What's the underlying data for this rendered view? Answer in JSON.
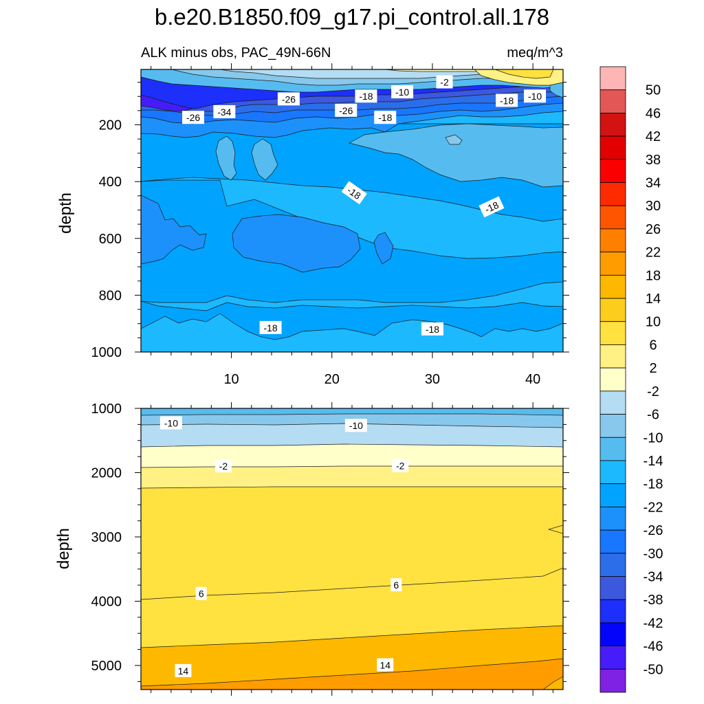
{
  "title": "b.e20.B1850.f09_g17.pi_control.all.178",
  "chart_data": {
    "type": "contour",
    "subtitle_left": "ALK minus obs, PAC_49N-66N",
    "subtitle_right": "meq/m^3",
    "x_ticks": [
      10,
      20,
      30,
      40
    ],
    "x_tick_labels": [
      "10",
      "20",
      "30",
      "40"
    ],
    "xlim": [
      1,
      43
    ],
    "colorbar": {
      "labels": [
        "50",
        "46",
        "42",
        "38",
        "34",
        "30",
        "26",
        "22",
        "18",
        "14",
        "10",
        "6",
        "2",
        "-2",
        "-6",
        "-10",
        "-14",
        "-18",
        "-22",
        "-26",
        "-30",
        "-34",
        "-38",
        "-42",
        "-46",
        "-50"
      ],
      "colors": [
        "#fdb5b5",
        "#e35757",
        "#d31212",
        "#e30000",
        "#fa0000",
        "#ff2b00",
        "#ff5500",
        "#ff8000",
        "#ff9d00",
        "#ffb800",
        "#fdcd1d",
        "#ffe140",
        "#fff184",
        "#ffffca",
        "#b4dcf3",
        "#88c8ec",
        "#56bcf0",
        "#1cb9ff",
        "#00a4ff",
        "#1d91fb",
        "#1976ff",
        "#2c6eea",
        "#3c58df",
        "#1d2ffa",
        "#0404fb",
        "#461cfa",
        "#7f22e3"
      ]
    },
    "panels": [
      {
        "name": "upper",
        "ylabel": "depth",
        "y_ticks": [
          200,
          400,
          600,
          800,
          1000
        ],
        "y_tick_labels": [
          "200",
          "400",
          "600",
          "800",
          "1000"
        ],
        "ylim": [
          5,
          1000
        ],
        "contour_labels": [
          {
            "text": "-26",
            "x": 15.7,
            "y": 110,
            "angle": 0
          },
          {
            "text": "-18",
            "x": 23.4,
            "y": 100,
            "angle": 0
          },
          {
            "text": "-10",
            "x": 27.0,
            "y": 85,
            "angle": 0
          },
          {
            "text": "-2",
            "x": 31.2,
            "y": 50,
            "angle": 0
          },
          {
            "text": "-18",
            "x": 37.4,
            "y": 115,
            "angle": 0
          },
          {
            "text": "-10",
            "x": 40.2,
            "y": 100,
            "angle": 0
          },
          {
            "text": "-34",
            "x": 9.3,
            "y": 155,
            "angle": 0
          },
          {
            "text": "-26",
            "x": 21.4,
            "y": 150,
            "angle": 0
          },
          {
            "text": "-26",
            "x": 6.2,
            "y": 175,
            "angle": 0
          },
          {
            "text": "-18",
            "x": 25.3,
            "y": 175,
            "angle": 0
          },
          {
            "text": "-18",
            "x": 22.2,
            "y": 440,
            "angle": 35
          },
          {
            "text": "-18",
            "x": 35.9,
            "y": 490,
            "angle": -25
          },
          {
            "text": "-18",
            "x": 13.9,
            "y": 915,
            "angle": 0
          },
          {
            "text": "-18",
            "x": 30.0,
            "y": 920,
            "angle": 0
          }
        ]
      },
      {
        "name": "lower",
        "ylabel": "depth",
        "y_ticks": [
          1000,
          2000,
          3000,
          4000,
          5000
        ],
        "y_tick_labels": [
          "1000",
          "2000",
          "3000",
          "4000",
          "5000"
        ],
        "ylim": [
          1000,
          5375
        ],
        "contour_labels": [
          {
            "text": "-10",
            "x": 4.0,
            "y": 1230,
            "angle": 0
          },
          {
            "text": "-10",
            "x": 22.4,
            "y": 1270,
            "angle": 0
          },
          {
            "text": "-2",
            "x": 9.2,
            "y": 1900,
            "angle": 0
          },
          {
            "text": "-2",
            "x": 26.8,
            "y": 1895,
            "angle": 0
          },
          {
            "text": "6",
            "x": 7.0,
            "y": 3885,
            "angle": 0
          },
          {
            "text": "6",
            "x": 26.4,
            "y": 3750,
            "angle": 0
          },
          {
            "text": "14",
            "x": 5.2,
            "y": 5085,
            "angle": 0
          },
          {
            "text": "14",
            "x": 25.3,
            "y": 4995,
            "angle": 0
          }
        ]
      }
    ]
  }
}
